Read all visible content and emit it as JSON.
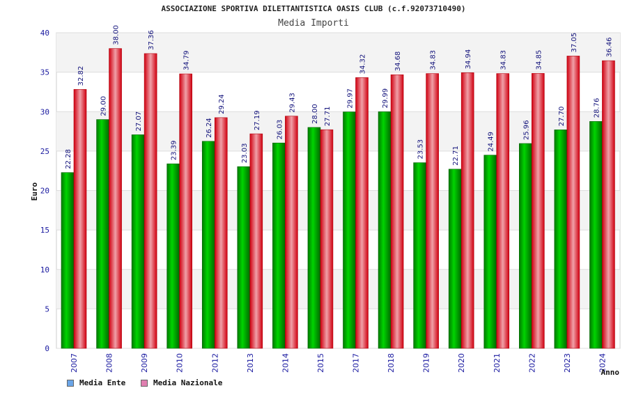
{
  "chart_data": {
    "type": "bar",
    "title": "ASSOCIAZIONE SPORTIVA DILETTANTISTICA OASIS CLUB (c.f.92073710490)",
    "subtitle": "Media Importi",
    "xlabel": "Anno",
    "ylabel": "Euro",
    "ylim": [
      0,
      40
    ],
    "yticks": [
      0,
      5,
      10,
      15,
      20,
      25,
      30,
      35,
      40
    ],
    "categories": [
      "2007",
      "2008",
      "2009",
      "2010",
      "2012",
      "2013",
      "2014",
      "2015",
      "2017",
      "2018",
      "2019",
      "2020",
      "2021",
      "2022",
      "2023",
      "2024"
    ],
    "series": [
      {
        "name": "Media Ente",
        "color": "#00b000",
        "legend_color": "#6aa5e8",
        "values": [
          22.28,
          29.0,
          27.07,
          23.39,
          26.24,
          23.03,
          26.03,
          28.0,
          29.97,
          29.99,
          23.53,
          22.71,
          24.49,
          25.96,
          27.7,
          28.76
        ],
        "labels": [
          "22.28",
          "29.00",
          "27.07",
          "23.39",
          "26.24",
          "23.03",
          "26.03",
          "28.00",
          "29.97",
          "29.99",
          "23.53",
          "22.71",
          "24.49",
          "25.96",
          "27.70",
          "28.76"
        ]
      },
      {
        "name": "Media Nazionale",
        "color": "#e00010",
        "legend_color": "#e07fb0",
        "values": [
          32.82,
          38.0,
          37.36,
          34.79,
          29.24,
          27.19,
          29.43,
          27.71,
          34.32,
          34.68,
          34.83,
          34.94,
          34.83,
          34.85,
          37.05,
          36.46
        ],
        "labels": [
          "32.82",
          "38.00",
          "37.36",
          "34.79",
          "29.24",
          "27.19",
          "29.43",
          "27.71",
          "34.32",
          "34.68",
          "34.83",
          "34.94",
          "34.83",
          "34.85",
          "37.05",
          "36.46"
        ]
      }
    ],
    "grid": true,
    "legend_position": "bottom-left"
  }
}
